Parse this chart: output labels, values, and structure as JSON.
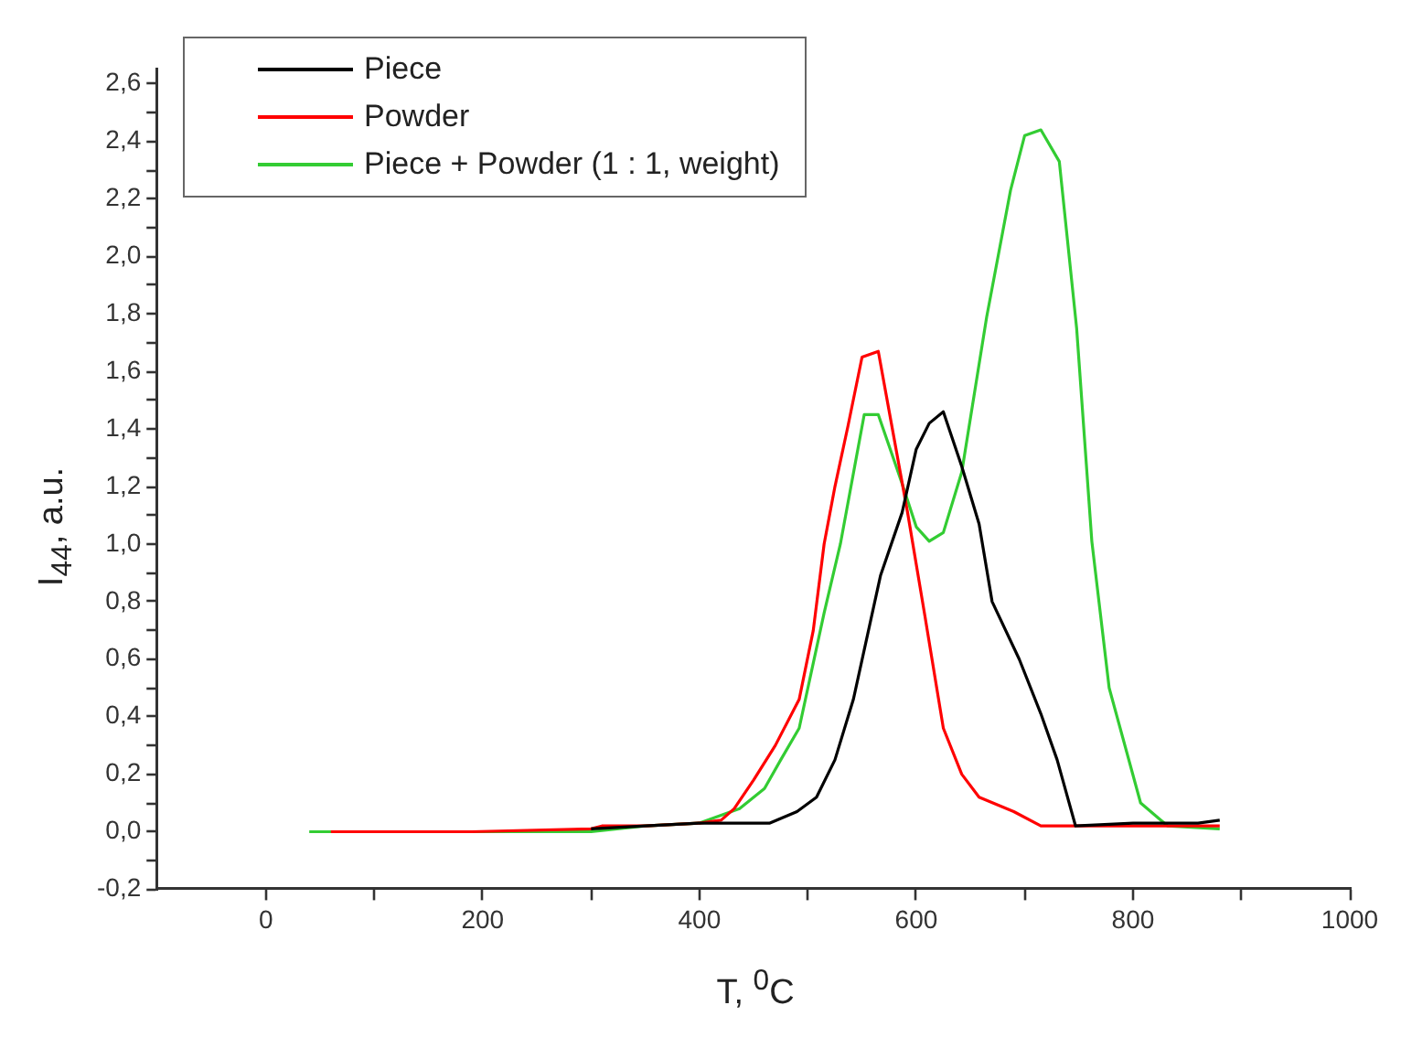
{
  "chart_data": {
    "type": "line",
    "xlabel": "T, $^{0}$C",
    "ylabel": "I$_{44}$, a.u.",
    "xlim": [
      -100,
      1000
    ],
    "xticks": [
      0,
      {
        "value": 100,
        "label": null
      },
      200,
      {
        "value": 300,
        "label": null
      },
      400,
      {
        "value": 500,
        "label": null
      },
      600,
      {
        "value": 700,
        "label": null
      },
      800,
      {
        "value": 900,
        "label": null
      },
      1000
    ],
    "ylim": [
      -0.2,
      2.65
    ],
    "yticks": [
      {
        "value": -0.2,
        "label": "-0,2"
      },
      {
        "value": -0.1,
        "label": null
      },
      {
        "value": 0,
        "label": "0,0"
      },
      {
        "value": 0.1,
        "label": null
      },
      {
        "value": 0.2,
        "label": "0,2"
      },
      {
        "value": 0.3,
        "label": null
      },
      {
        "value": 0.4,
        "label": "0,4"
      },
      {
        "value": 0.5,
        "label": null
      },
      {
        "value": 0.6,
        "label": "0,6"
      },
      {
        "value": 0.7,
        "label": null
      },
      {
        "value": 0.8,
        "label": "0,8"
      },
      {
        "value": 0.9,
        "label": null
      },
      {
        "value": 1.0,
        "label": "1,0"
      },
      {
        "value": 1.1,
        "label": null
      },
      {
        "value": 1.2,
        "label": "1,2"
      },
      {
        "value": 1.3,
        "label": null
      },
      {
        "value": 1.4,
        "label": "1,4"
      },
      {
        "value": 1.5,
        "label": null
      },
      {
        "value": 1.6,
        "label": "1,6"
      },
      {
        "value": 1.7,
        "label": null
      },
      {
        "value": 1.8,
        "label": "1,8"
      },
      {
        "value": 1.9,
        "label": null
      },
      {
        "value": 2.0,
        "label": "2,0"
      },
      {
        "value": 2.1,
        "label": null
      },
      {
        "value": 2.2,
        "label": "2,2"
      },
      {
        "value": 2.3,
        "label": null
      },
      {
        "value": 2.4,
        "label": "2,4"
      },
      {
        "value": 2.5,
        "label": null
      },
      {
        "value": 2.6,
        "label": "2,6"
      }
    ],
    "grid": false,
    "legend": "top left",
    "marker": "none",
    "line_style": "solid",
    "series": [
      {
        "name": "Piece",
        "color": "#000000",
        "x": [
          300,
          350,
          400,
          465,
          490,
          508,
          525,
          542,
          567,
          587,
          600,
          612,
          625,
          642,
          658,
          670,
          695,
          715,
          730,
          747,
          800,
          860,
          880
        ],
        "values": [
          0.01,
          0.02,
          0.03,
          0.03,
          0.07,
          0.12,
          0.25,
          0.46,
          0.89,
          1.11,
          1.33,
          1.42,
          1.46,
          1.27,
          1.07,
          0.8,
          0.6,
          0.41,
          0.25,
          0.02,
          0.03,
          0.03,
          0.04
        ]
      },
      {
        "name": "Powder",
        "color": "#ff0000",
        "x": [
          60,
          190,
          300,
          310,
          350,
          400,
          420,
          432,
          450,
          470,
          492,
          505,
          515,
          525,
          537,
          550,
          565,
          578,
          592,
          608,
          625,
          642,
          658,
          690,
          715,
          800,
          880
        ],
        "values": [
          0,
          0,
          0.01,
          0.02,
          0.02,
          0.03,
          0.04,
          0.08,
          0.18,
          0.3,
          0.46,
          0.7,
          1.0,
          1.2,
          1.41,
          1.65,
          1.67,
          1.4,
          1.11,
          0.75,
          0.36,
          0.2,
          0.12,
          0.07,
          0.02,
          0.02,
          0.02
        ]
      },
      {
        "name": "Piece + Powder (1 : 1, weight)",
        "color": "#33cc33",
        "x": [
          40,
          300,
          350,
          400,
          437,
          460,
          475,
          492,
          515,
          530,
          552,
          565,
          587,
          600,
          612,
          625,
          642,
          665,
          687,
          700,
          715,
          732,
          748,
          762,
          778,
          807,
          832,
          880
        ],
        "values": [
          0,
          0,
          0.02,
          0.03,
          0.08,
          0.15,
          0.25,
          0.36,
          0.76,
          1.0,
          1.45,
          1.45,
          1.21,
          1.06,
          1.01,
          1.04,
          1.25,
          1.79,
          2.23,
          2.42,
          2.44,
          2.33,
          1.75,
          1.01,
          0.5,
          0.1,
          0.02,
          0.01
        ]
      }
    ]
  }
}
